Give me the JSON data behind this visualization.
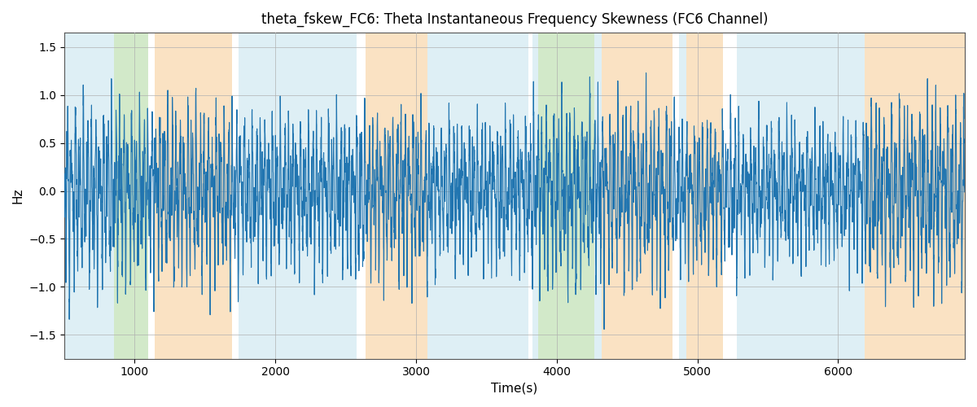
{
  "title": "theta_fskew_FC6: Theta Instantaneous Frequency Skewness (FC6 Channel)",
  "xlabel": "Time(s)",
  "ylabel": "Hz",
  "ylim": [
    -1.75,
    1.65
  ],
  "xlim": [
    500,
    6900
  ],
  "line_color": "#2175b0",
  "line_width": 0.8,
  "bg_color": "#ffffff",
  "grid_color": "#b0b0b0",
  "background_bands": [
    {
      "xmin": 500,
      "xmax": 855,
      "color": "#add8e6",
      "alpha": 0.4
    },
    {
      "xmin": 855,
      "xmax": 1095,
      "color": "#90c878",
      "alpha": 0.4
    },
    {
      "xmin": 1140,
      "xmax": 1690,
      "color": "#f4c07a",
      "alpha": 0.45
    },
    {
      "xmin": 1740,
      "xmax": 2580,
      "color": "#add8e6",
      "alpha": 0.4
    },
    {
      "xmin": 2640,
      "xmax": 3080,
      "color": "#f4c07a",
      "alpha": 0.45
    },
    {
      "xmin": 3080,
      "xmax": 3800,
      "color": "#add8e6",
      "alpha": 0.4
    },
    {
      "xmin": 3830,
      "xmax": 3870,
      "color": "#add8e6",
      "alpha": 0.4
    },
    {
      "xmin": 3870,
      "xmax": 4270,
      "color": "#90c878",
      "alpha": 0.4
    },
    {
      "xmin": 4270,
      "xmax": 4320,
      "color": "#add8e6",
      "alpha": 0.4
    },
    {
      "xmin": 4320,
      "xmax": 4820,
      "color": "#f4c07a",
      "alpha": 0.45
    },
    {
      "xmin": 4870,
      "xmax": 4920,
      "color": "#add8e6",
      "alpha": 0.4
    },
    {
      "xmin": 4920,
      "xmax": 5180,
      "color": "#f4c07a",
      "alpha": 0.45
    },
    {
      "xmin": 5280,
      "xmax": 6190,
      "color": "#add8e6",
      "alpha": 0.4
    },
    {
      "xmin": 6190,
      "xmax": 6900,
      "color": "#f4c07a",
      "alpha": 0.45
    }
  ],
  "xticks": [
    1000,
    2000,
    3000,
    4000,
    5000,
    6000
  ],
  "yticks": [
    -1.5,
    -1.0,
    -0.5,
    0.0,
    0.5,
    1.0,
    1.5
  ],
  "seed": 12345,
  "t_start": 500,
  "t_end": 6900
}
